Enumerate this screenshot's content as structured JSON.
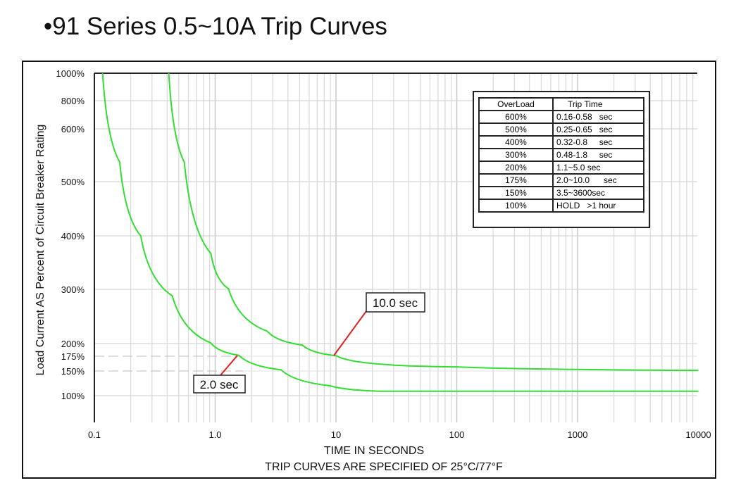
{
  "title": "•91 Series 0.5~10A Trip Curves",
  "chart_data": {
    "type": "line",
    "title": "•91 Series 0.5~10A Trip Curves",
    "xlabel": "TIME IN SECONDS",
    "footnote": "TRIP CURVES ARE SPECIFIED OF 25°C/77°F",
    "ylabel": "Load Current AS Percent of Circuit Breaker Rating",
    "x_scale": "log",
    "xlim": [
      0.1,
      10000
    ],
    "x_ticks": [
      "0.1",
      "1.0",
      "10",
      "100",
      "1000",
      "10000"
    ],
    "y_ticks": [
      "1000%",
      "800%",
      "600%",
      "500%",
      "400%",
      "300%",
      "200%",
      "175%",
      "150%",
      "100%"
    ],
    "y_tick_values": [
      1000,
      800,
      600,
      500,
      400,
      300,
      200,
      175,
      150,
      100
    ],
    "grid": true,
    "series": [
      {
        "name": "min trip curve",
        "color": "#33dd33",
        "x": [
          0.117,
          0.162,
          0.242,
          0.442,
          0.922,
          1.57,
          3.52,
          8.98,
          22.9,
          10000
        ],
        "y": [
          1000,
          537,
          400,
          288,
          201,
          177,
          152,
          120,
          109,
          109
        ]
      },
      {
        "name": "max trip curve",
        "color": "#33dd33",
        "x": [
          0.413,
          0.555,
          0.922,
          1.29,
          2.69,
          5.27,
          10,
          26,
          100,
          10000
        ],
        "y": [
          1000,
          537,
          367,
          301,
          223,
          197,
          176,
          161,
          157,
          151
        ]
      }
    ],
    "annotations": [
      {
        "text": "10.0 sec",
        "x": 10,
        "y": 175
      },
      {
        "text": "2.0 sec",
        "x": 2.0,
        "y": 175
      }
    ],
    "reference_lines": [
      175,
      150
    ]
  },
  "table": {
    "headers": [
      "OverLoad",
      "Trip Time"
    ],
    "rows": [
      [
        "600%",
        "0.16-0.58   sec"
      ],
      [
        "500%",
        "0.25-0.65   sec"
      ],
      [
        "400%",
        "0.32-0.8     sec"
      ],
      [
        "300%",
        "0.48-1.8     sec"
      ],
      [
        "200%",
        "1.1~5.0 sec"
      ],
      [
        "175%",
        "2.0~10.0      sec"
      ],
      [
        "150%",
        "3.5~3600sec"
      ],
      [
        "100%",
        "HOLD   >1 hour"
      ]
    ]
  }
}
